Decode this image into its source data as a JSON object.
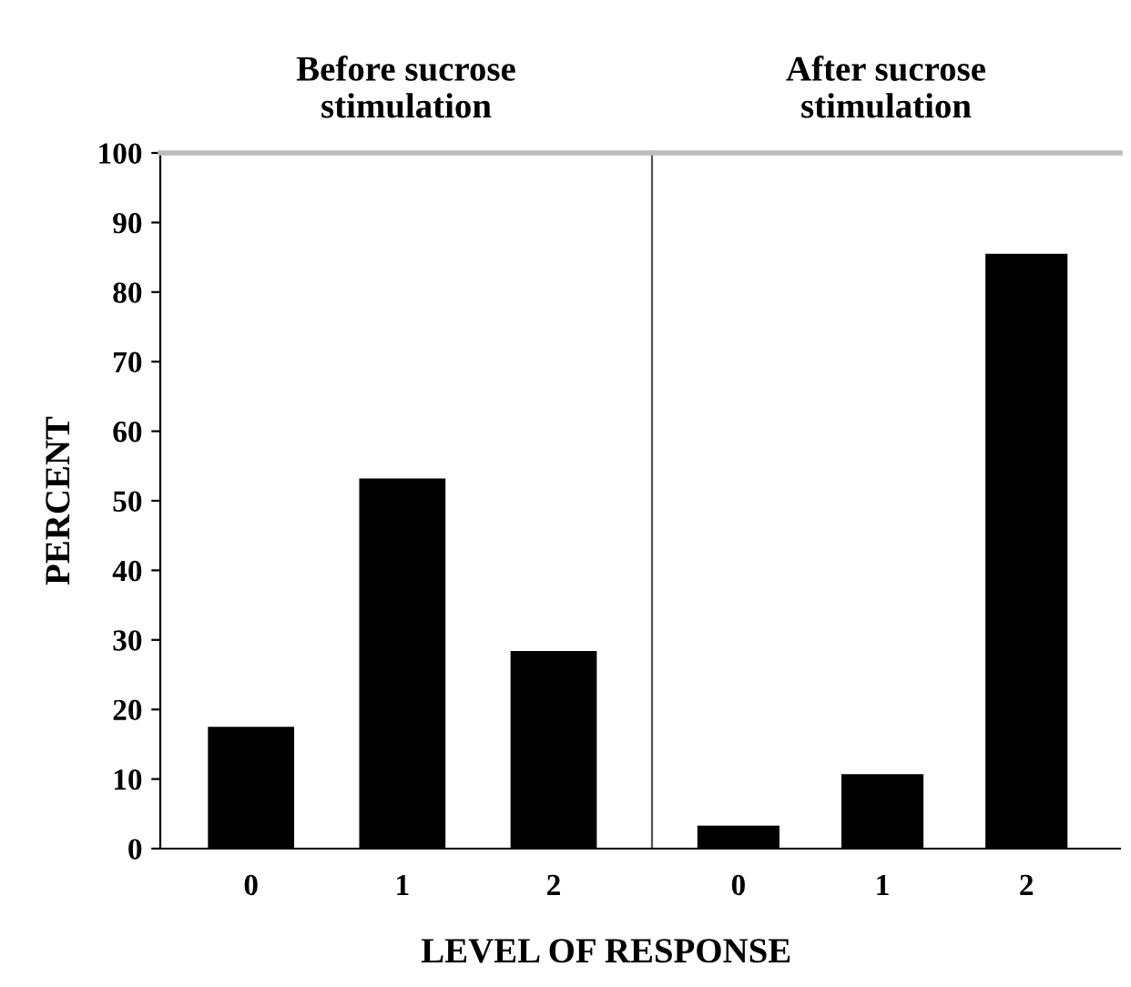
{
  "chart_data": [
    {
      "type": "bar",
      "title": "Before sucrose\nstimulation",
      "ylabel": "PERCENT",
      "xlabel": "LEVEL OF RESPONSE",
      "categories": [
        "0",
        "1",
        "2"
      ],
      "values": [
        17.5,
        53.2,
        28.4
      ],
      "color": "#000000",
      "ylim": [
        0,
        100
      ],
      "yticks": [
        0,
        10,
        20,
        30,
        40,
        50,
        60,
        70,
        80,
        90,
        100
      ],
      "grid": false
    },
    {
      "type": "bar",
      "title": "After sucrose\nstimulation",
      "categories": [
        "0",
        "1",
        "2"
      ],
      "values": [
        3.3,
        10.7,
        85.5
      ],
      "color": "#000000",
      "ylim": [
        0,
        100
      ],
      "tick_labels": "x",
      "grid": false
    }
  ]
}
